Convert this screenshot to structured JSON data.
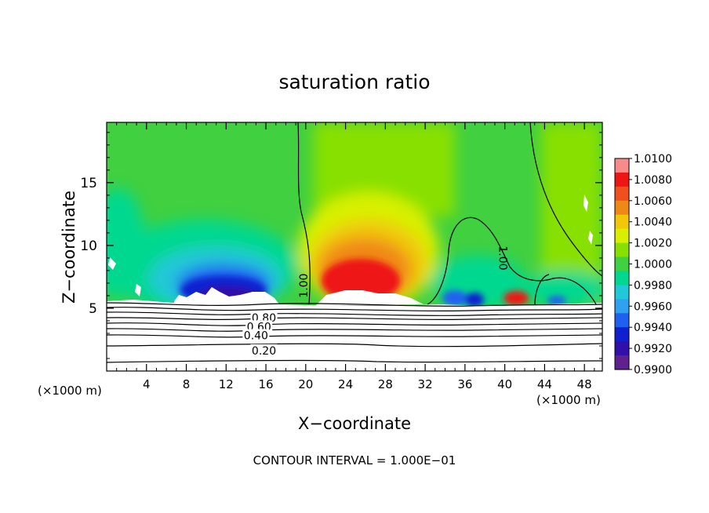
{
  "chart_data": {
    "type": "heatmap",
    "title": "saturation ratio",
    "xlabel": "X−coordinate",
    "ylabel": "Z−coordinate",
    "x_unit_left": "(×1000 m)",
    "x_unit_right": "(×1000 m)",
    "footer": "CONTOUR INTERVAL = 1.000E−01",
    "xlim": [
      0,
      49.8
    ],
    "ylim": [
      0,
      19.8
    ],
    "x_ticks": [
      4,
      8,
      12,
      16,
      20,
      24,
      28,
      32,
      36,
      40,
      44,
      48
    ],
    "x_tick_labels": [
      "4",
      "8",
      "12",
      "16",
      "20",
      "24",
      "28",
      "32",
      "36",
      "40",
      "44",
      "48"
    ],
    "y_ticks": [
      5,
      10,
      15
    ],
    "y_tick_labels": [
      "5",
      "10",
      "15"
    ],
    "colorbar": {
      "ticks": [
        1.01,
        1.008,
        1.006,
        1.004,
        1.002,
        1.0,
        0.998,
        0.996,
        0.994,
        0.992,
        0.99
      ],
      "labels": [
        "1.0100",
        "1.0080",
        "1.0060",
        "1.0040",
        "1.0020",
        "1.0000",
        "0.9980",
        "0.9960",
        "0.9940",
        "0.9920",
        "0.9900"
      ],
      "colors": [
        "#f88a8a",
        "#ee1515",
        "#f05020",
        "#f08818",
        "#f0c808",
        "#d8f000",
        "#88e000",
        "#40d040",
        "#00d890",
        "#20c8d8",
        "#30a0f0",
        "#2060f0",
        "#1020d0",
        "#3010a8",
        "#602090"
      ]
    },
    "contour_labels": [
      {
        "text": "1.00",
        "x": 19.7,
        "z": 6.8,
        "rotate": -90
      },
      {
        "text": "1.00",
        "x": 39.9,
        "z": 9.0,
        "rotate": 90
      },
      {
        "text": "0.80",
        "x": 15.8,
        "z": 4.3,
        "rotate": 0
      },
      {
        "text": "0.60",
        "x": 15.3,
        "z": 3.6,
        "rotate": 0
      },
      {
        "text": "0.40",
        "x": 15.0,
        "z": 2.9,
        "rotate": 0
      },
      {
        "text": "0.20",
        "x": 15.8,
        "z": 1.7,
        "rotate": 0
      }
    ]
  }
}
